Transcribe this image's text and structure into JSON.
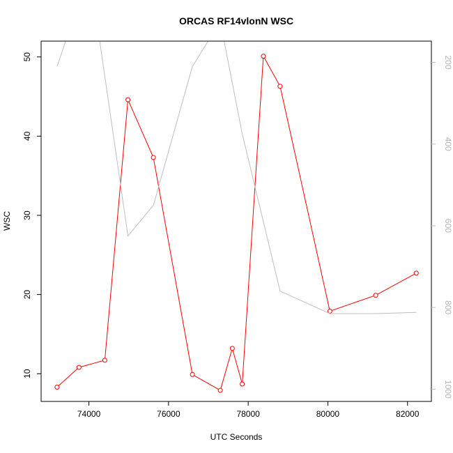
{
  "chart_data": {
    "type": "line",
    "title": "ORCAS RF14vlonN WSC",
    "xlabel": "UTC Seconds",
    "ylabel": "WSC",
    "xlim": [
      72800,
      82600
    ],
    "ylim": [
      6.5,
      52
    ],
    "xticks": [
      74000,
      76000,
      78000,
      80000,
      82000
    ],
    "yticks": [
      10,
      20,
      30,
      40,
      50
    ],
    "y2lim": [
      1030,
      148
    ],
    "y2ticks": [
      200,
      400,
      600,
      800,
      1000
    ],
    "y2_color": "#bebebe",
    "grid": false,
    "series": [
      {
        "color": "#ff0000",
        "axis": "left",
        "markers": true,
        "x": [
          73200,
          73750,
          74400,
          74980,
          75620,
          76600,
          77300,
          77600,
          77850,
          78380,
          78800,
          80050,
          81200,
          82220
        ],
        "y": [
          8.3,
          10.8,
          11.7,
          44.6,
          37.3,
          9.9,
          7.9,
          13.2,
          8.7,
          50.1,
          46.3,
          17.9,
          19.9,
          22.7
        ]
      },
      {
        "color": "#bebebe",
        "axis": "right",
        "markers": false,
        "x": [
          73200,
          73550,
          74200,
          74980,
          75620,
          76600,
          77300,
          77850,
          78380,
          78800,
          80050,
          81200,
          82220
        ],
        "y": [
          210,
          110,
          100,
          625,
          550,
          210,
          100,
          375,
          590,
          760,
          815,
          815,
          812
        ]
      }
    ]
  }
}
